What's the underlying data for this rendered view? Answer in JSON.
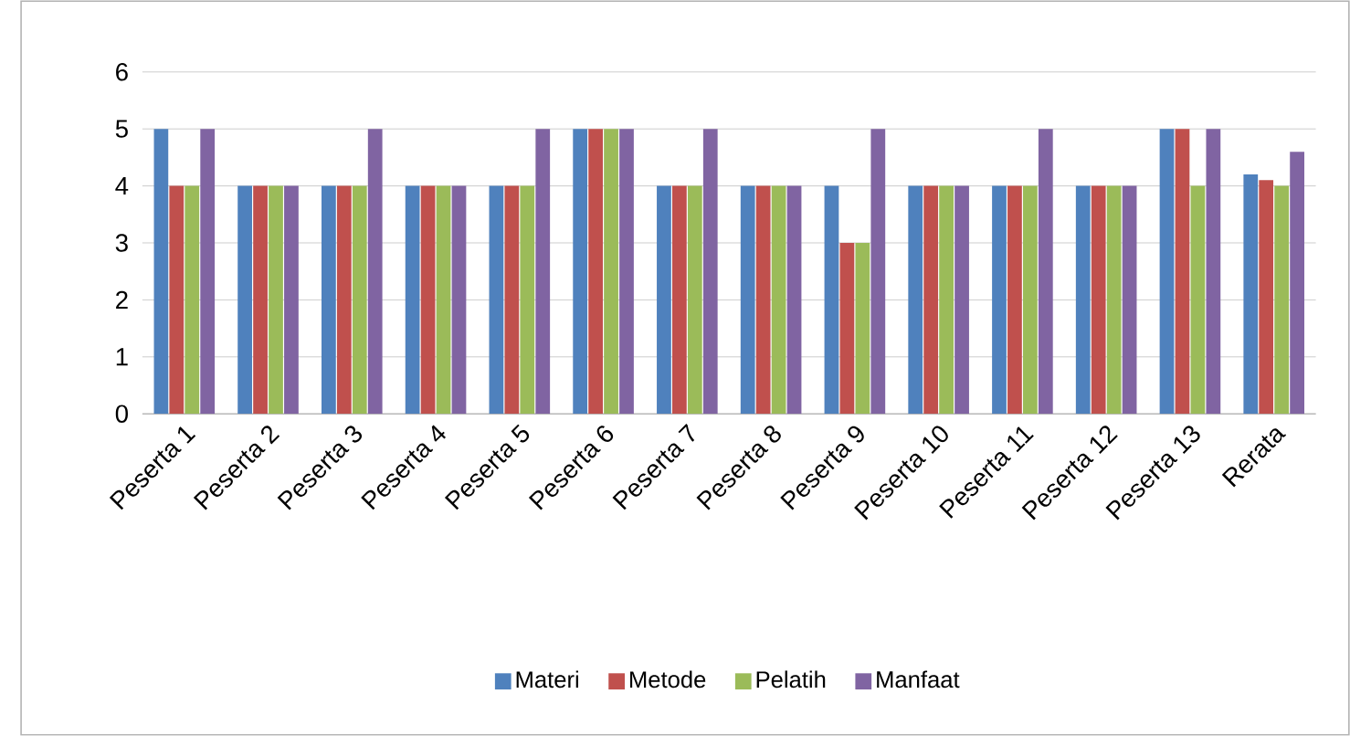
{
  "chart_data": {
    "type": "bar",
    "categories": [
      "Peserta 1",
      "Peserta 2",
      "Peserta 3",
      "Peserta 4",
      "Peserta 5",
      "Peserta 6",
      "Peserta 7",
      "Peserta 8",
      "Peserta 9",
      "Peserta 10",
      "Peserta 11",
      "Peserta 12",
      "Peserta 13",
      "Rerata"
    ],
    "series": [
      {
        "name": "Materi",
        "color": "#4f81bd",
        "values": [
          5,
          4,
          4,
          4,
          4,
          5,
          4,
          4,
          4,
          4,
          4,
          4,
          5,
          4.2
        ]
      },
      {
        "name": "Metode",
        "color": "#c0504d",
        "values": [
          4,
          4,
          4,
          4,
          4,
          5,
          4,
          4,
          3,
          4,
          4,
          4,
          5,
          4.1
        ]
      },
      {
        "name": "Pelatih",
        "color": "#9bbb59",
        "values": [
          4,
          4,
          4,
          4,
          4,
          5,
          4,
          4,
          3,
          4,
          4,
          4,
          4,
          4
        ]
      },
      {
        "name": "Manfaat",
        "color": "#8064a2",
        "values": [
          5,
          4,
          5,
          4,
          5,
          5,
          5,
          4,
          5,
          4,
          5,
          4,
          5,
          4.6
        ]
      }
    ],
    "ylim": [
      0,
      6
    ],
    "yticks": [
      0,
      1,
      2,
      3,
      4,
      5,
      6
    ],
    "grid": "y",
    "legend": "bottom"
  }
}
